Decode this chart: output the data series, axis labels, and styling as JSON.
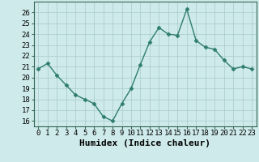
{
  "x": [
    0,
    1,
    2,
    3,
    4,
    5,
    6,
    7,
    8,
    9,
    10,
    11,
    12,
    13,
    14,
    15,
    16,
    17,
    18,
    19,
    20,
    21,
    22,
    23
  ],
  "y": [
    20.8,
    21.3,
    20.2,
    19.3,
    18.4,
    18.0,
    17.6,
    16.4,
    16.0,
    17.6,
    19.0,
    21.2,
    23.3,
    24.6,
    24.0,
    23.9,
    26.3,
    23.4,
    22.8,
    22.6,
    21.6,
    20.8,
    21.0,
    20.8
  ],
  "line_color": "#2e7d6e",
  "marker": "D",
  "markersize": 2.5,
  "linewidth": 1.0,
  "bg_color": "#ceeaea",
  "grid_color": "#aacaca",
  "xlabel": "Humidex (Indice chaleur)",
  "ylim": [
    15.5,
    27
  ],
  "xlim": [
    -0.5,
    23.5
  ],
  "yticks": [
    16,
    17,
    18,
    19,
    20,
    21,
    22,
    23,
    24,
    25,
    26
  ],
  "xtick_labels": [
    "0",
    "1",
    "2",
    "3",
    "4",
    "5",
    "6",
    "7",
    "8",
    "9",
    "10",
    "11",
    "12",
    "13",
    "14",
    "15",
    "16",
    "17",
    "18",
    "19",
    "20",
    "21",
    "22",
    "23"
  ],
  "tick_fontsize": 6.5,
  "xlabel_fontsize": 8
}
